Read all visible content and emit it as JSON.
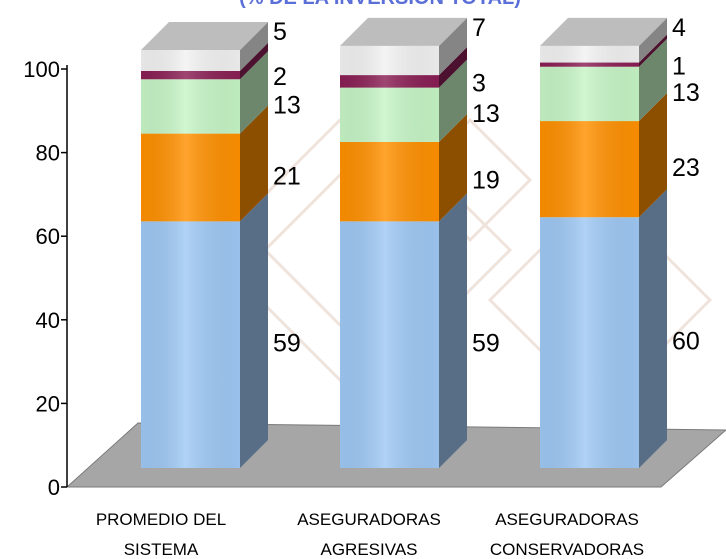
{
  "chart_data": {
    "type": "bar",
    "stacked": true,
    "three_d": true,
    "title": "(% DE LA INVERSION TOTAL)",
    "categories": [
      [
        "PROMEDIO DEL",
        "SISTEMA"
      ],
      [
        "ASEGURADORAS",
        "AGRESIVAS"
      ],
      [
        "ASEGURADORAS",
        "CONSERVADORAS"
      ]
    ],
    "series": [
      {
        "color": "#9ec8f4",
        "values": [
          59,
          59,
          60
        ]
      },
      {
        "color": "#ff9000",
        "values": [
          21,
          19,
          23
        ]
      },
      {
        "color": "#c6f5c6",
        "values": [
          13,
          13,
          13
        ]
      },
      {
        "color": "#8a1f55",
        "values": [
          2,
          3,
          1
        ]
      },
      {
        "color": "#f2f2f2",
        "values": [
          5,
          7,
          4
        ]
      }
    ],
    "y_ticks": [
      0,
      20,
      40,
      60,
      80,
      100
    ],
    "ylim": [
      0,
      100
    ],
    "grid": false,
    "legend": "none",
    "floor_color": "#a6a6a6"
  }
}
